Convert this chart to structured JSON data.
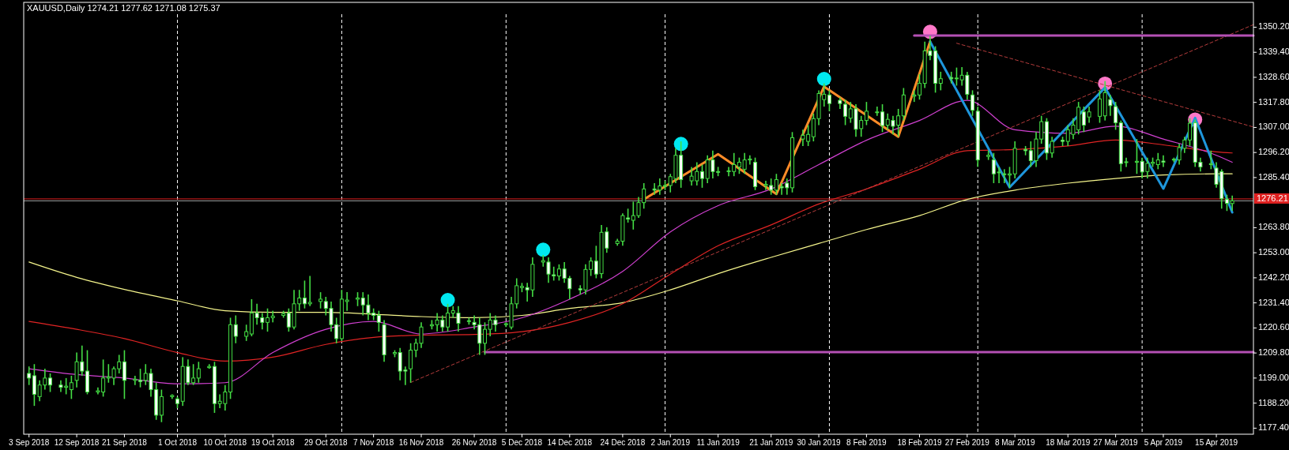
{
  "chart_data": {
    "type": "candlestick",
    "title": "XAUUSD,Daily  1274.21 1277.62 1271.08 1275.37",
    "x": [
      "2018-09-03",
      "2018-09-04",
      "2018-09-05",
      "2018-09-06",
      "2018-09-07",
      "2018-09-09",
      "2018-09-10",
      "2018-09-11",
      "2018-09-12",
      "2018-09-13",
      "2018-09-14",
      "2018-09-16",
      "2018-09-17",
      "2018-09-18",
      "2018-09-19",
      "2018-09-20",
      "2018-09-21",
      "2018-09-23",
      "2018-09-24",
      "2018-09-25",
      "2018-09-26",
      "2018-09-27",
      "2018-09-28",
      "2018-09-30",
      "2018-10-01",
      "2018-10-02",
      "2018-10-03",
      "2018-10-04",
      "2018-10-05",
      "2018-10-07",
      "2018-10-08",
      "2018-10-09",
      "2018-10-10",
      "2018-10-11",
      "2018-10-12",
      "2018-10-14",
      "2018-10-15",
      "2018-10-16",
      "2018-10-17",
      "2018-10-18",
      "2018-10-19",
      "2018-10-21",
      "2018-10-22",
      "2018-10-23",
      "2018-10-24",
      "2018-10-25",
      "2018-10-26",
      "2018-10-28",
      "2018-10-29",
      "2018-10-30",
      "2018-10-31",
      "2018-11-01",
      "2018-11-02",
      "2018-11-04",
      "2018-11-05",
      "2018-11-06",
      "2018-11-07",
      "2018-11-08",
      "2018-11-09",
      "2018-11-11",
      "2018-11-12",
      "2018-11-13",
      "2018-11-14",
      "2018-11-15",
      "2018-11-16",
      "2018-11-18",
      "2018-11-19",
      "2018-11-20",
      "2018-11-21",
      "2018-11-22",
      "2018-11-23",
      "2018-11-25",
      "2018-11-26",
      "2018-11-27",
      "2018-11-28",
      "2018-11-29",
      "2018-11-30",
      "2018-12-02",
      "2018-12-03",
      "2018-12-04",
      "2018-12-05",
      "2018-12-06",
      "2018-12-07",
      "2018-12-09",
      "2018-12-10",
      "2018-12-11",
      "2018-12-12",
      "2018-12-13",
      "2018-12-14",
      "2018-12-16",
      "2018-12-17",
      "2018-12-18",
      "2018-12-19",
      "2018-12-20",
      "2018-12-21",
      "2018-12-23",
      "2018-12-24",
      "2018-12-25",
      "2018-12-26",
      "2018-12-27",
      "2018-12-28",
      "2018-12-30",
      "2018-12-31",
      "2019-01-01",
      "2019-01-02",
      "2019-01-03",
      "2019-01-04",
      "2019-01-06",
      "2019-01-07",
      "2019-01-08",
      "2019-01-09",
      "2019-01-10",
      "2019-01-11",
      "2019-01-13",
      "2019-01-14",
      "2019-01-15",
      "2019-01-16",
      "2019-01-17",
      "2019-01-18",
      "2019-01-20",
      "2019-01-21",
      "2019-01-22",
      "2019-01-23",
      "2019-01-24",
      "2019-01-25",
      "2019-01-27",
      "2019-01-28",
      "2019-01-29",
      "2019-01-30",
      "2019-01-31",
      "2019-02-01",
      "2019-02-03",
      "2019-02-04",
      "2019-02-05",
      "2019-02-06",
      "2019-02-07",
      "2019-02-08",
      "2019-02-10",
      "2019-02-11",
      "2019-02-12",
      "2019-02-13",
      "2019-02-14",
      "2019-02-15",
      "2019-02-17",
      "2019-02-18",
      "2019-02-19",
      "2019-02-20",
      "2019-02-21",
      "2019-02-22",
      "2019-02-24",
      "2019-02-25",
      "2019-02-26",
      "2019-02-27",
      "2019-02-28",
      "2019-03-01",
      "2019-03-03",
      "2019-03-04",
      "2019-03-05",
      "2019-03-06",
      "2019-03-07",
      "2019-03-08",
      "2019-03-10",
      "2019-03-11",
      "2019-03-12",
      "2019-03-13",
      "2019-03-14",
      "2019-03-15",
      "2019-03-17",
      "2019-03-18",
      "2019-03-19",
      "2019-03-20",
      "2019-03-21",
      "2019-03-22",
      "2019-03-24",
      "2019-03-25",
      "2019-03-26",
      "2019-03-27",
      "2019-03-28",
      "2019-03-29",
      "2019-03-31",
      "2019-04-01",
      "2019-04-02",
      "2019-04-03",
      "2019-04-04",
      "2019-04-05",
      "2019-04-07",
      "2019-04-08",
      "2019-04-09",
      "2019-04-10",
      "2019-04-11",
      "2019-04-12",
      "2019-04-14",
      "2019-04-15",
      "2019-04-16",
      "2019-04-17",
      "2019-04-18"
    ],
    "ohlc": [
      [
        1201,
        1204,
        1196,
        1199
      ],
      [
        1200,
        1205,
        1187,
        1192
      ],
      [
        1191,
        1198,
        1189,
        1196
      ],
      [
        1196,
        1203,
        1194,
        1199
      ],
      [
        1199,
        1201,
        1193,
        1196
      ],
      [
        1196,
        1198,
        1193,
        1195
      ],
      [
        1195,
        1199,
        1192,
        1195.5
      ],
      [
        1194,
        1200,
        1190,
        1197
      ],
      [
        1198,
        1210,
        1195,
        1206
      ],
      [
        1206,
        1213,
        1200,
        1202
      ],
      [
        1202,
        1211,
        1192,
        1193
      ],
      [
        1193,
        1195,
        1192,
        1193.5
      ],
      [
        1193,
        1207,
        1191,
        1199
      ],
      [
        1199,
        1205,
        1197,
        1199.5
      ],
      [
        1199,
        1204,
        1196,
        1203
      ],
      [
        1203,
        1209,
        1201,
        1206
      ],
      [
        1206,
        1211,
        1190,
        1198
      ],
      [
        1198,
        1200,
        1196,
        1198.5
      ],
      [
        1198,
        1203,
        1195,
        1197.5
      ],
      [
        1198,
        1205,
        1196,
        1201
      ],
      [
        1201,
        1203,
        1191,
        1194
      ],
      [
        1194,
        1197,
        1181,
        1183
      ],
      [
        1183,
        1194,
        1180,
        1191
      ],
      [
        1191,
        1192,
        1190,
        1191.5
      ],
      [
        1190,
        1191,
        1186,
        1188
      ],
      [
        1189,
        1208,
        1187,
        1204
      ],
      [
        1204,
        1207,
        1196,
        1197
      ],
      [
        1197,
        1205,
        1196,
        1199
      ],
      [
        1199,
        1206,
        1197,
        1203
      ],
      [
        1203.5,
        1205,
        1203,
        1204
      ],
      [
        1204,
        1206,
        1184,
        1188
      ],
      [
        1188,
        1192,
        1186,
        1189
      ],
      [
        1188,
        1196,
        1185,
        1193
      ],
      [
        1193,
        1225,
        1190,
        1222
      ],
      [
        1222,
        1226,
        1214,
        1217
      ],
      [
        1217,
        1222,
        1215,
        1219
      ],
      [
        1218,
        1233,
        1217,
        1227
      ],
      [
        1227,
        1231,
        1222,
        1225
      ],
      [
        1225,
        1227,
        1220,
        1223
      ],
      [
        1223,
        1229,
        1219,
        1225
      ],
      [
        1225,
        1228,
        1223,
        1225.7
      ],
      [
        1226,
        1228,
        1225,
        1226.7
      ],
      [
        1227,
        1229,
        1219,
        1221
      ],
      [
        1221,
        1237,
        1220,
        1231
      ],
      [
        1231,
        1237,
        1228,
        1233.5
      ],
      [
        1233.5,
        1241,
        1229,
        1231
      ],
      [
        1231,
        1243,
        1230,
        1231.6
      ],
      [
        1232,
        1236,
        1229,
        1233
      ],
      [
        1232,
        1234,
        1226,
        1229
      ],
      [
        1229,
        1232,
        1219,
        1222
      ],
      [
        1222,
        1225,
        1214,
        1216
      ],
      [
        1216,
        1237,
        1215,
        1233
      ],
      [
        1232,
        1236,
        1228,
        1232.6
      ],
      [
        1233,
        1236,
        1230,
        1233.5
      ],
      [
        1233.5,
        1236,
        1226,
        1230.5
      ],
      [
        1230.5,
        1235,
        1224,
        1227
      ],
      [
        1227,
        1229,
        1224,
        1226
      ],
      [
        1226,
        1228,
        1219,
        1223
      ],
      [
        1222,
        1224,
        1206,
        1209
      ],
      [
        1209.5,
        1211,
        1208,
        1210
      ],
      [
        1210,
        1212,
        1198,
        1202
      ],
      [
        1202.5,
        1204,
        1196,
        1202
      ],
      [
        1203,
        1214,
        1197,
        1211
      ],
      [
        1211,
        1216,
        1208,
        1214
      ],
      [
        1214,
        1223,
        1212,
        1221
      ],
      [
        1221.5,
        1224,
        1220,
        1222
      ],
      [
        1222,
        1227,
        1219,
        1224
      ],
      [
        1224,
        1226,
        1219,
        1221
      ],
      [
        1221,
        1231,
        1219,
        1227
      ],
      [
        1227,
        1230,
        1225,
        1228
      ],
      [
        1227,
        1230,
        1219,
        1222.6
      ],
      [
        1223.5,
        1225,
        1222,
        1223.7
      ],
      [
        1223,
        1226,
        1220,
        1222
      ],
      [
        1222,
        1225,
        1209,
        1214
      ],
      [
        1214,
        1223,
        1209,
        1220
      ],
      [
        1220,
        1227,
        1217,
        1224
      ],
      [
        1224,
        1226,
        1219,
        1222
      ],
      [
        1222,
        1223,
        1221,
        1222.4
      ],
      [
        1221,
        1234,
        1220,
        1231
      ],
      [
        1231,
        1242,
        1229,
        1238.8
      ],
      [
        1238,
        1240,
        1236,
        1238.5
      ],
      [
        1238,
        1240,
        1232,
        1237
      ],
      [
        1237,
        1251,
        1234,
        1248
      ],
      [
        1249,
        1252,
        1247,
        1249.6
      ],
      [
        1249,
        1251,
        1240,
        1243.8
      ],
      [
        1243.5,
        1247,
        1241,
        1243
      ],
      [
        1243,
        1248,
        1241,
        1246
      ],
      [
        1246,
        1249,
        1240,
        1242
      ],
      [
        1242,
        1243,
        1233,
        1237.5
      ],
      [
        1237.5,
        1239,
        1235,
        1237
      ],
      [
        1237,
        1248,
        1235,
        1245.8
      ],
      [
        1245.8,
        1251,
        1243,
        1249.4
      ],
      [
        1249.4,
        1256,
        1242,
        1243.8
      ],
      [
        1244,
        1265,
        1242,
        1261.8
      ],
      [
        1262,
        1264,
        1253,
        1255
      ],
      [
        1257,
        1259,
        1256,
        1258
      ],
      [
        1258,
        1270,
        1256,
        1269
      ],
      [
        1268,
        1272,
        1266,
        1267.5
      ],
      [
        1267,
        1275,
        1263,
        1269
      ],
      [
        1269,
        1277,
        1268,
        1274.6
      ],
      [
        1274.6,
        1283,
        1272,
        1280.5
      ],
      [
        1280.5,
        1283,
        1278,
        1280
      ],
      [
        1280,
        1285,
        1278,
        1281.8
      ],
      [
        1281.8,
        1284,
        1280,
        1282
      ],
      [
        1282,
        1287,
        1279,
        1285.8
      ],
      [
        1285,
        1298,
        1283,
        1295
      ],
      [
        1295,
        1301,
        1281,
        1284.5
      ],
      [
        1284,
        1290,
        1282,
        1286
      ],
      [
        1284,
        1292,
        1282,
        1288
      ],
      [
        1288,
        1291,
        1281,
        1285
      ],
      [
        1285,
        1295,
        1283,
        1293
      ],
      [
        1293,
        1297,
        1285,
        1288
      ],
      [
        1288,
        1290,
        1286,
        1287.8
      ],
      [
        1288,
        1290,
        1286,
        1288.3
      ],
      [
        1288,
        1296,
        1286,
        1291
      ],
      [
        1290,
        1294,
        1287,
        1292
      ],
      [
        1289,
        1296,
        1287,
        1293
      ],
      [
        1293,
        1295,
        1291,
        1293.4
      ],
      [
        1292,
        1294,
        1280,
        1281.5
      ],
      [
        1282,
        1284,
        1280,
        1282.5
      ],
      [
        1282,
        1285,
        1278,
        1280
      ],
      [
        1280,
        1287,
        1278,
        1284.5
      ],
      [
        1281.5,
        1283,
        1278,
        1281
      ],
      [
        1283,
        1285,
        1278,
        1281
      ],
      [
        1281,
        1305,
        1279,
        1302.6
      ],
      [
        1302,
        1306,
        1299,
        1303.6
      ],
      [
        1301,
        1308,
        1299,
        1304
      ],
      [
        1303,
        1313,
        1301,
        1310.8
      ],
      [
        1310.8,
        1323,
        1308,
        1321.6
      ],
      [
        1319,
        1326,
        1316,
        1321.3
      ],
      [
        1321,
        1323,
        1314,
        1317.3
      ],
      [
        1318.7,
        1320,
        1315,
        1317.3
      ],
      [
        1317,
        1319,
        1308,
        1311.8
      ],
      [
        1311,
        1318,
        1309,
        1315
      ],
      [
        1315,
        1317,
        1303,
        1306.2
      ],
      [
        1306.5,
        1312,
        1303,
        1310
      ],
      [
        1310,
        1318,
        1308,
        1314
      ],
      [
        1313.5,
        1316,
        1312,
        1313.7
      ],
      [
        1313.7,
        1317,
        1305,
        1307.8
      ],
      [
        1308,
        1313,
        1306,
        1310.5
      ],
      [
        1310,
        1312,
        1304,
        1307.5
      ],
      [
        1308,
        1315,
        1303,
        1312
      ],
      [
        1312,
        1324,
        1310,
        1321
      ],
      [
        1320.5,
        1323,
        1318,
        1321
      ],
      [
        1321,
        1330,
        1319,
        1326
      ],
      [
        1326,
        1344,
        1324,
        1340
      ],
      [
        1340,
        1346.5,
        1336,
        1338
      ],
      [
        1340,
        1342,
        1322,
        1326
      ],
      [
        1326,
        1331,
        1323,
        1328
      ],
      [
        1328.5,
        1331,
        1326,
        1328
      ],
      [
        1328,
        1332.8,
        1325,
        1328.3
      ],
      [
        1327.5,
        1333,
        1325,
        1329.5
      ],
      [
        1329.5,
        1331,
        1319,
        1321.3
      ],
      [
        1321,
        1323,
        1312,
        1314.4
      ],
      [
        1314,
        1316,
        1290,
        1293
      ],
      [
        1294.5,
        1297,
        1293,
        1295
      ],
      [
        1293,
        1296,
        1283,
        1287
      ],
      [
        1287.5,
        1290,
        1283,
        1287.8
      ],
      [
        1287,
        1289,
        1283,
        1286.8
      ],
      [
        1286.5,
        1290,
        1281,
        1287
      ],
      [
        1287,
        1301,
        1285,
        1298
      ],
      [
        1297.5,
        1299,
        1295,
        1297
      ],
      [
        1297,
        1301,
        1290,
        1292.7
      ],
      [
        1292.7,
        1305,
        1290,
        1302
      ],
      [
        1302,
        1312,
        1300,
        1309.5
      ],
      [
        1309.5,
        1311,
        1293,
        1296
      ],
      [
        1296,
        1303,
        1294,
        1301
      ],
      [
        1301.5,
        1303,
        1299,
        1301
      ],
      [
        1301,
        1308,
        1299,
        1306
      ],
      [
        1304,
        1311,
        1302,
        1308
      ],
      [
        1306,
        1318,
        1304,
        1315.7
      ],
      [
        1313.7,
        1316,
        1305,
        1308
      ],
      [
        1311.5,
        1316,
        1309,
        1313.7
      ],
      [
        1311.8,
        1323,
        1309,
        1319.3
      ],
      [
        1312,
        1327,
        1310,
        1322
      ],
      [
        1319,
        1321,
        1312,
        1316.4
      ],
      [
        1316,
        1318,
        1306,
        1309
      ],
      [
        1309,
        1310,
        1288,
        1291.4
      ],
      [
        1292,
        1294,
        1290,
        1292.2
      ],
      [
        1292,
        1302,
        1287,
        1292.4
      ],
      [
        1292.4,
        1294,
        1285,
        1287.8
      ],
      [
        1288,
        1294,
        1285,
        1291.5
      ],
      [
        1291.5,
        1294,
        1290,
        1292
      ],
      [
        1291,
        1296,
        1289,
        1293
      ],
      [
        1292.5,
        1295,
        1290,
        1292
      ],
      [
        1293,
        1294,
        1292,
        1293.3
      ],
      [
        1293,
        1300,
        1291,
        1298.3
      ],
      [
        1298,
        1303,
        1296,
        1301.6
      ],
      [
        1301.6,
        1311,
        1299,
        1308.8
      ],
      [
        1309,
        1310.5,
        1290,
        1292
      ],
      [
        1292,
        1294,
        1288,
        1290
      ],
      [
        1291,
        1297,
        1289,
        1291.4
      ],
      [
        1289.5,
        1292,
        1281,
        1282.5
      ],
      [
        1288,
        1289,
        1272,
        1276.3
      ],
      [
        1276,
        1278,
        1271,
        1274.3
      ],
      [
        1274.21,
        1277.62,
        1271.08,
        1275.37
      ]
    ],
    "xlim": [
      "2018-09-02",
      "2019-04-22"
    ],
    "ylim": [
      1174.8,
      1355.8
    ],
    "xticks": [
      {
        "value": "2018-09-03",
        "label": "3 Sep 2018"
      },
      {
        "value": "2018-09-12",
        "label": "12 Sep 2018"
      },
      {
        "value": "2018-09-21",
        "label": "21 Sep 2018"
      },
      {
        "value": "2018-10-01",
        "label": "1 Oct 2018"
      },
      {
        "value": "2018-10-10",
        "label": "10 Oct 2018"
      },
      {
        "value": "2018-10-19",
        "label": "19 Oct 2018"
      },
      {
        "value": "2018-10-29",
        "label": "29 Oct 2018"
      },
      {
        "value": "2018-11-07",
        "label": "7 Nov 2018"
      },
      {
        "value": "2018-11-16",
        "label": "16 Nov 2018"
      },
      {
        "value": "2018-11-26",
        "label": "26 Nov 2018"
      },
      {
        "value": "2018-12-05",
        "label": "5 Dec 2018"
      },
      {
        "value": "2018-12-14",
        "label": "14 Dec 2018"
      },
      {
        "value": "2018-12-24",
        "label": "24 Dec 2018"
      },
      {
        "value": "2019-01-02",
        "label": "2 Jan 2019"
      },
      {
        "value": "2019-01-11",
        "label": "11 Jan 2019"
      },
      {
        "value": "2019-01-21",
        "label": "21 Jan 2019"
      },
      {
        "value": "2019-01-30",
        "label": "30 Jan 2019"
      },
      {
        "value": "2019-02-08",
        "label": "8 Feb 2019"
      },
      {
        "value": "2019-02-18",
        "label": "18 Feb 2019"
      },
      {
        "value": "2019-02-27",
        "label": "27 Feb 2019"
      },
      {
        "value": "2019-03-08",
        "label": "8 Mar 2019"
      },
      {
        "value": "2019-03-18",
        "label": "18 Mar 2019"
      },
      {
        "value": "2019-03-27",
        "label": "27 Mar 2019"
      },
      {
        "value": "2019-04-05",
        "label": "5 Apr 2019"
      },
      {
        "value": "2019-04-15",
        "label": "15 Apr 2019"
      }
    ],
    "yticks": [
      {
        "value": 1177.4,
        "label": "1177.40"
      },
      {
        "value": 1188.2,
        "label": "1188.20"
      },
      {
        "value": 1199,
        "label": "1199.00"
      },
      {
        "value": 1209.8,
        "label": "1209.80"
      },
      {
        "value": 1220.6,
        "label": "1220.60"
      },
      {
        "value": 1231.4,
        "label": "1231.40"
      },
      {
        "value": 1242.2,
        "label": "1242.20"
      },
      {
        "value": 1253,
        "label": "1253.00"
      },
      {
        "value": 1263.8,
        "label": "1263.80"
      },
      {
        "value": 1285.4,
        "label": "1285.40"
      },
      {
        "value": 1296.2,
        "label": "1296.20"
      },
      {
        "value": 1307,
        "label": "1307.00"
      },
      {
        "value": 1317.8,
        "label": "1317.80"
      },
      {
        "value": 1328.6,
        "label": "1328.60"
      },
      {
        "value": 1339.4,
        "label": "1339.40"
      },
      {
        "value": 1350.2,
        "label": "1350.20"
      }
    ],
    "series": [
      {
        "type": "line",
        "color": "#f5f58c",
        "x": [
          "2018-09-03",
          "2018-09-12",
          "2018-09-21",
          "2018-10-01",
          "2018-10-10",
          "2018-10-19",
          "2018-10-29",
          "2018-11-07",
          "2018-11-16",
          "2018-11-26",
          "2018-12-05",
          "2018-12-14",
          "2018-12-24",
          "2019-01-02",
          "2019-01-11",
          "2019-01-21",
          "2019-01-30",
          "2019-02-08",
          "2019-02-18",
          "2019-02-27",
          "2019-03-08",
          "2019-03-18",
          "2019-03-27",
          "2019-04-05",
          "2019-04-15",
          "2019-04-18"
        ],
        "values": [
          1249.0,
          1242.4,
          1237.2,
          1232.3,
          1228,
          1227.3,
          1227.3,
          1226.5,
          1225.5,
          1225,
          1226,
          1229,
          1231.5,
          1237,
          1244,
          1251,
          1257,
          1263,
          1269,
          1276,
          1280,
          1283,
          1285,
          1286.5,
          1287,
          1287
        ]
      },
      {
        "type": "line",
        "color": "#e02424",
        "x": [
          "2018-09-03",
          "2018-09-12",
          "2018-09-21",
          "2018-10-01",
          "2018-10-10",
          "2018-10-19",
          "2018-10-29",
          "2018-11-07",
          "2018-11-16",
          "2018-11-26",
          "2018-12-05",
          "2018-12-14",
          "2018-12-24",
          "2019-01-02",
          "2019-01-11",
          "2019-01-21",
          "2019-01-30",
          "2019-02-08",
          "2019-02-18",
          "2019-02-27",
          "2019-03-08",
          "2019-03-18",
          "2019-03-27",
          "2019-04-05",
          "2019-04-15",
          "2019-04-18"
        ],
        "values": [
          1223.4,
          1220,
          1216,
          1210,
          1206.3,
          1208,
          1213.5,
          1216.5,
          1217.5,
          1217.8,
          1219,
          1223,
          1231,
          1243.8,
          1256,
          1265,
          1274,
          1280.5,
          1289,
          1297,
          1297.5,
          1299,
          1301.6,
          1299.5,
          1296.5,
          1296
        ]
      },
      {
        "type": "line",
        "color": "#d040d0",
        "x": [
          "2018-09-03",
          "2018-09-12",
          "2018-09-21",
          "2018-10-01",
          "2018-10-10",
          "2018-10-19",
          "2018-10-29",
          "2018-11-07",
          "2018-11-16",
          "2018-11-26",
          "2018-12-05",
          "2018-12-14",
          "2018-12-24",
          "2019-01-02",
          "2019-01-11",
          "2019-01-21",
          "2019-01-30",
          "2019-02-08",
          "2019-02-18",
          "2019-02-27",
          "2019-03-08",
          "2019-03-18",
          "2019-03-27",
          "2019-04-05",
          "2019-04-15",
          "2019-04-18"
        ],
        "values": [
          1203,
          1200.5,
          1199,
          1196.5,
          1197,
          1210,
          1220,
          1223.4,
          1218,
          1221,
          1225,
          1233,
          1245,
          1262,
          1273.3,
          1280.5,
          1291,
          1301.5,
          1310,
          1318.7,
          1306,
          1304.5,
          1307.5,
          1302,
          1295,
          1292
        ]
      },
      {
        "type": "line",
        "color": "#b43c3c",
        "line_style": "dashed",
        "x": [
          "2018-11-14",
          "2019-04-22"
        ],
        "values": [
          1197.1,
          1351.3
        ]
      },
      {
        "type": "line",
        "color": "#b43c3c",
        "line_style": "dashed",
        "x": [
          "2019-02-25",
          "2019-04-22"
        ],
        "values": [
          1343.3,
          1307.2
        ]
      },
      {
        "type": "line",
        "color": "#b450b4",
        "x": [
          "2019-02-17",
          "2019-04-22"
        ],
        "values": [
          1346.6,
          1346.6
        ]
      },
      {
        "type": "line",
        "color": "#b450b4",
        "x": [
          "2018-11-28",
          "2019-04-22"
        ],
        "values": [
          1210.2,
          1210.2
        ]
      },
      {
        "type": "line",
        "color": "#ff8c28",
        "x": [
          "2018-12-28",
          "2019-01-11",
          "2019-01-22",
          "2019-01-31",
          "2019-02-14",
          "2019-02-20"
        ],
        "values": [
          1276,
          1295.5,
          1278.3,
          1324.6,
          1303,
          1344
        ]
      },
      {
        "type": "line",
        "color": "#1e96dc",
        "x": [
          "2019-02-20",
          "2019-03-07",
          "2019-03-25",
          "2019-04-05",
          "2019-04-11",
          "2019-04-18"
        ],
        "values": [
          1344,
          1281.2,
          1324.2,
          1280.6,
          1311.1,
          1270.4
        ]
      },
      {
        "type": "scatter",
        "marker": "circle",
        "color": "#00e8f0",
        "x": [
          "2018-11-21",
          "2018-12-09",
          "2019-01-04",
          "2019-01-31"
        ],
        "values": [
          1232.6,
          1254.3,
          1299.9,
          1327.9
        ]
      },
      {
        "type": "scatter",
        "marker": "circle",
        "color": "#ff78c8",
        "x": [
          "2019-02-20",
          "2019-03-25",
          "2019-04-11"
        ],
        "values": [
          1348.2,
          1325.9,
          1310.4
        ]
      }
    ],
    "ref_lines": [
      {
        "axis": "x",
        "value": "2018-10-01",
        "color": "#ffffff",
        "line_style": "dashed"
      },
      {
        "axis": "x",
        "value": "2018-11-01",
        "color": "#ffffff",
        "line_style": "dashed"
      },
      {
        "axis": "x",
        "value": "2018-12-02",
        "color": "#ffffff",
        "line_style": "dashed"
      },
      {
        "axis": "x",
        "value": "2019-01-01",
        "color": "#ffffff",
        "line_style": "dashed"
      },
      {
        "axis": "x",
        "value": "2019-02-01",
        "color": "#ffffff",
        "line_style": "dashed"
      },
      {
        "axis": "x",
        "value": "2019-03-01",
        "color": "#ffffff",
        "line_style": "dashed"
      },
      {
        "axis": "x",
        "value": "2019-04-01",
        "color": "#ffffff",
        "line_style": "dashed"
      },
      {
        "axis": "y",
        "value": 1275.37,
        "color": "#a0a0a0"
      },
      {
        "axis": "y",
        "value": 1276.21,
        "label": "1276.21",
        "color": "#e02020"
      }
    ]
  }
}
